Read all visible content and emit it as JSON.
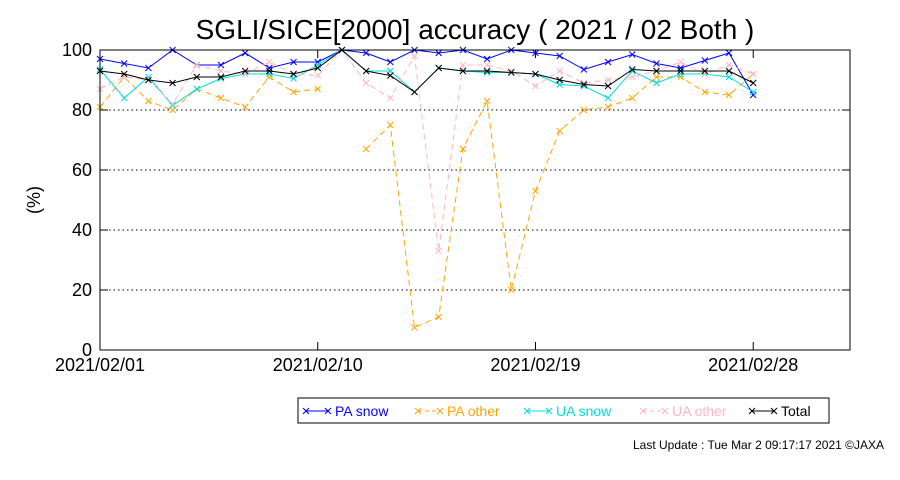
{
  "chart_data": {
    "type": "line",
    "title": "SGLI/SICE[2000] accuracy ( 2021 / 02 Both )",
    "xlabel": "",
    "ylabel": "(%)",
    "ylim": [
      0,
      100
    ],
    "xlim": [
      "2021-02-01",
      "2021-03-04"
    ],
    "yticks": [
      0,
      20,
      40,
      60,
      80,
      100
    ],
    "xticks": [
      "2021/02/01",
      "2021/02/10",
      "2021/02/19",
      "2021/02/28"
    ],
    "grid": "horizontal dotted at 20, 40, 60, 80",
    "legend_position": "bottom",
    "x": [
      "2021-02-01",
      "2021-02-02",
      "2021-02-03",
      "2021-02-04",
      "2021-02-05",
      "2021-02-06",
      "2021-02-07",
      "2021-02-08",
      "2021-02-09",
      "2021-02-10",
      "2021-02-11",
      "2021-02-12",
      "2021-02-13",
      "2021-02-14",
      "2021-02-15",
      "2021-02-16",
      "2021-02-17",
      "2021-02-18",
      "2021-02-19",
      "2021-02-20",
      "2021-02-21",
      "2021-02-22",
      "2021-02-23",
      "2021-02-24",
      "2021-02-25",
      "2021-02-26",
      "2021-02-27",
      "2021-02-28"
    ],
    "series": [
      {
        "name": "PA snow",
        "color": "#0000ff",
        "dash": "solid",
        "values": [
          97,
          95.5,
          94,
          100,
          95,
          95,
          99,
          94,
          96,
          96,
          100,
          99,
          96,
          100,
          99,
          100,
          97,
          100,
          99,
          98,
          93.5,
          96,
          98.5,
          95.5,
          94,
          96.5,
          99,
          85
        ]
      },
      {
        "name": "PA other",
        "color": "#ffa500",
        "dash": "dashed",
        "values": [
          81,
          91,
          83,
          80,
          87,
          84,
          81,
          91,
          86,
          87,
          null,
          67,
          75,
          7.5,
          11,
          67,
          83,
          20,
          53,
          73,
          80,
          81,
          84,
          91,
          91,
          86,
          85,
          92
        ]
      },
      {
        "name": "UA snow",
        "color": "#00dddd",
        "dash": "solid",
        "values": [
          93.5,
          84,
          91,
          81.5,
          87,
          90.5,
          92,
          92,
          90.5,
          95,
          100,
          93,
          93,
          86,
          94,
          93,
          92.5,
          92.5,
          92,
          88.5,
          88,
          84,
          93,
          89,
          92,
          92,
          91,
          86
        ]
      },
      {
        "name": "UA other",
        "color": "#ffb6c1",
        "dash": "dashed",
        "values": [
          87,
          91,
          90,
          82,
          95,
          93,
          92,
          96,
          92,
          91.5,
          100,
          89,
          84,
          98,
          33,
          95,
          95,
          93,
          88,
          93,
          89,
          90,
          91,
          93,
          96,
          92,
          95,
          92
        ]
      },
      {
        "name": "Total",
        "color": "#000000",
        "dash": "solid",
        "values": [
          93,
          92,
          90,
          89,
          91,
          91,
          93,
          93,
          92,
          94,
          100,
          93,
          91.5,
          86,
          94,
          93,
          93,
          92.5,
          92,
          90,
          88.5,
          88,
          93.5,
          93,
          93,
          93,
          93,
          89
        ]
      }
    ]
  },
  "footer": {
    "update_text": "Last Update : Tue Mar  2 09:17:17 2021  ©JAXA"
  }
}
